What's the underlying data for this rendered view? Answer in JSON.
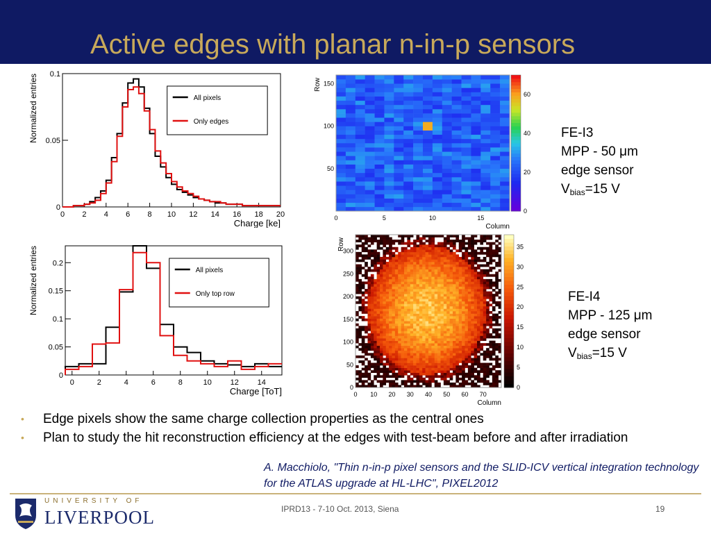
{
  "slide": {
    "title": "Active edges with planar n-in-p sensors",
    "colors": {
      "header_bg": "#0f1a63",
      "title": "#c8a95a",
      "accent": "#c8a95a",
      "reference": "#0f1a63"
    },
    "specs": [
      {
        "line1": "FE-I3",
        "line2": "MPP - 50 μm",
        "line3": "edge sensor",
        "line4_prefix": "V",
        "line4_sub": "bias",
        "line4_suffix": "=15 V"
      },
      {
        "line1": "FE-I4",
        "line2": "MPP - 125 μm",
        "line3": "edge sensor",
        "line4_prefix": "V",
        "line4_sub": "bias",
        "line4_suffix": "=15 V"
      }
    ],
    "bullets": [
      "Edge pixels show the same charge collection properties as the central ones",
      "Plan to study the hit reconstruction efficiency at the edges with test-beam before and after irradiation"
    ],
    "reference": "A. Macchiolo, \"Thin n-in-p pixel sensors and the SLID-ICV vertical integration technology for the ATLAS upgrade at HL-LHC\", PIXEL2012",
    "footer": {
      "event": "IPRD13 - 7-10 Oct. 2013, Siena",
      "page": "19"
    },
    "logo": {
      "university": "UNIVERSITY OF",
      "name": "LIVERPOOL",
      "icon": "liverpool-crest-icon"
    }
  },
  "chart_data": [
    {
      "type": "line",
      "ylabel": "Normalized entries",
      "xlabel": "Charge [ke]",
      "xlim": [
        0,
        20
      ],
      "ylim": [
        0,
        0.1
      ],
      "xticks": [
        0,
        2,
        4,
        6,
        8,
        10,
        12,
        14,
        16,
        18,
        20
      ],
      "yticks": [
        0,
        0.05,
        0.1
      ],
      "ytick_labels": [
        "0",
        "0.05",
        "0.1"
      ],
      "bin_width": 0.5,
      "legend": "top-right",
      "series": [
        {
          "name": "All pixels",
          "color": "#000000",
          "values": [
            0,
            0,
            0.001,
            0.001,
            0.002,
            0.004,
            0.007,
            0.012,
            0.02,
            0.037,
            0.055,
            0.078,
            0.093,
            0.096,
            0.09,
            0.074,
            0.055,
            0.038,
            0.03,
            0.022,
            0.017,
            0.013,
            0.011,
            0.009,
            0.007,
            0.006,
            0.005,
            0.004,
            0.003,
            0.003,
            0.002,
            0.002,
            0.002,
            0.001,
            0.001,
            0.001,
            0.001,
            0.001,
            0.001,
            0.001
          ]
        },
        {
          "name": "Only edges",
          "color": "#e01010",
          "values": [
            0,
            0,
            0.001,
            0.001,
            0.002,
            0.003,
            0.005,
            0.01,
            0.018,
            0.034,
            0.053,
            0.075,
            0.088,
            0.09,
            0.085,
            0.072,
            0.058,
            0.042,
            0.033,
            0.025,
            0.019,
            0.015,
            0.012,
            0.01,
            0.008,
            0.006,
            0.005,
            0.004,
            0.004,
            0.003,
            0.002,
            0.002,
            0.002,
            0.001,
            0.001,
            0.001,
            0.001,
            0.001,
            0.001,
            0.001
          ]
        }
      ]
    },
    {
      "type": "heatmap",
      "xlabel": "Column",
      "ylabel": "Row",
      "xlim": [
        0,
        18
      ],
      "ylim": [
        0,
        160
      ],
      "xticks": [
        0,
        5,
        10,
        15
      ],
      "yticks": [
        50,
        100,
        150
      ],
      "colorbar_ticks": [
        0,
        20,
        40,
        60
      ],
      "colorbar_range": [
        0,
        70
      ],
      "colorscale": "rainbow"
    },
    {
      "type": "line",
      "ylabel": "Normalized entries",
      "xlabel": "Charge [ToT]",
      "xlim": [
        -0.5,
        15.5
      ],
      "ylim": [
        0,
        0.23
      ],
      "xticks": [
        0,
        2,
        4,
        6,
        8,
        10,
        12,
        14
      ],
      "yticks": [
        0,
        0.05,
        0.1,
        0.15,
        0.2
      ],
      "ytick_labels": [
        "0",
        "0.05",
        "0.1",
        "0.15",
        "0.2"
      ],
      "bin_width": 1,
      "legend": "top-right",
      "series": [
        {
          "name": "All pixels",
          "color": "#000000",
          "values": [
            0.015,
            0.02,
            0.02,
            0.085,
            0.148,
            0.23,
            0.19,
            0.09,
            0.05,
            0.04,
            0.025,
            0.02,
            0.018,
            0.015,
            0.02,
            0.015
          ]
        },
        {
          "name": "Only top row",
          "color": "#e01010",
          "values": [
            0.01,
            0.015,
            0.055,
            0.057,
            0.152,
            0.218,
            0.2,
            0.07,
            0.035,
            0.025,
            0.02,
            0.015,
            0.025,
            0.01,
            0.015,
            0.02
          ]
        }
      ]
    },
    {
      "type": "heatmap",
      "xlabel": "Column",
      "ylabel": "Row",
      "xlim": [
        0,
        80
      ],
      "ylim": [
        0,
        336
      ],
      "xticks": [
        0,
        10,
        20,
        30,
        40,
        50,
        60,
        70
      ],
      "yticks": [
        0,
        50,
        100,
        150,
        200,
        250,
        300
      ],
      "colorbar_ticks": [
        0,
        5,
        10,
        15,
        20,
        25,
        30,
        35
      ],
      "colorbar_range": [
        0,
        38
      ],
      "colorscale": "black-red-yellow"
    }
  ]
}
